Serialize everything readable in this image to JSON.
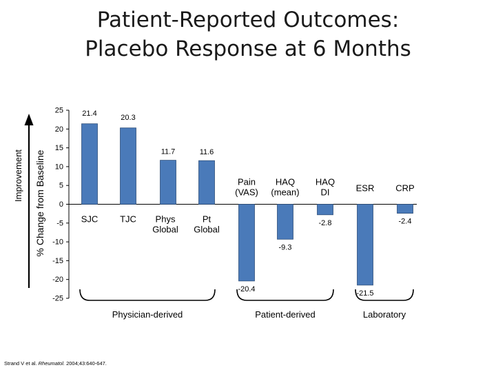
{
  "title_lines": [
    "Patient-Reported Outcomes:",
    "Placebo Response at 6 Months"
  ],
  "chart_data": {
    "type": "bar",
    "ylabel": "% Change from Baseline",
    "side_label": "Improvement",
    "ylim": [
      -25,
      25
    ],
    "yticks": [
      25,
      20,
      15,
      10,
      5,
      0,
      -5,
      -10,
      -15,
      -20,
      -25
    ],
    "categories": [
      {
        "lines": [
          "SJC"
        ],
        "value": 21.4,
        "label": "21.4"
      },
      {
        "lines": [
          "TJC"
        ],
        "value": 20.3,
        "label": "20.3"
      },
      {
        "lines": [
          "Phys",
          "Global"
        ],
        "value": 11.7,
        "label": "11.7"
      },
      {
        "lines": [
          "Pt",
          "Global"
        ],
        "value": 11.6,
        "label": "11.6"
      },
      {
        "lines": [
          "Pain",
          "(VAS)"
        ],
        "value": -20.4,
        "label": "-20.4"
      },
      {
        "lines": [
          "HAQ",
          "(mean)"
        ],
        "value": -9.3,
        "label": "-9.3"
      },
      {
        "lines": [
          "HAQ",
          "DI"
        ],
        "value": -2.8,
        "label": "-2.8"
      },
      {
        "lines": [
          "ESR"
        ],
        "value": -21.5,
        "label": "-21.5"
      },
      {
        "lines": [
          "CRP"
        ],
        "value": -2.4,
        "label": "-2.4"
      }
    ],
    "groups": [
      {
        "label": "Physician-derived",
        "from": 0,
        "to": 3
      },
      {
        "label": "Patient-derived",
        "from": 4,
        "to": 6
      },
      {
        "label": "Laboratory",
        "from": 7,
        "to": 8
      }
    ],
    "colors": {
      "bar": "#4a7ab9",
      "bar_edge": "#2e4f7a",
      "axis": "#000000"
    }
  },
  "citation": {
    "authors": "Strand V et al. ",
    "journal": "Rheumatol.",
    "details": " 2004;43:640-647."
  }
}
